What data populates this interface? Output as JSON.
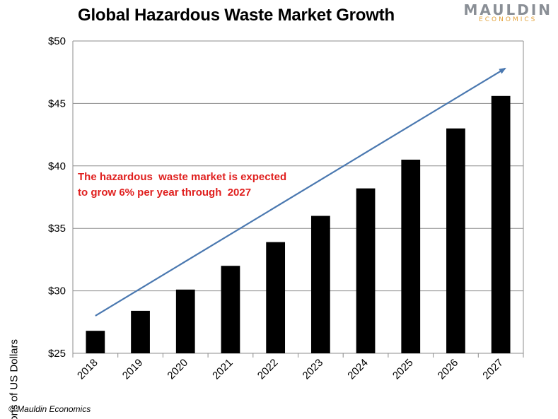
{
  "chart_data": {
    "type": "bar",
    "title": "Global Hazardous Waste Market Growth",
    "xlabel": "",
    "ylabel": "Billions of US Dollars",
    "categories": [
      "2018",
      "2019",
      "2020",
      "2021",
      "2022",
      "2023",
      "2024",
      "2025",
      "2026",
      "2027"
    ],
    "values": [
      26.8,
      28.4,
      30.1,
      32.0,
      33.9,
      36.0,
      38.2,
      40.5,
      43.0,
      45.6
    ],
    "ylim": [
      25,
      50
    ],
    "yticks": [
      25,
      30,
      35,
      40,
      45,
      50
    ],
    "ytick_labels": [
      "$25",
      "$30",
      "$35",
      "$40",
      "$45",
      "$50"
    ],
    "grid": true,
    "bar_color": "#000000",
    "annotation": {
      "lines": [
        "The hazardous  waste market is expected",
        "to grow 6% per year through  2027"
      ],
      "color": "#e0201f"
    },
    "trend_arrow": {
      "from": [
        "2018",
        28.0
      ],
      "to": [
        "2027",
        47.8
      ],
      "color": "#4a78b0"
    }
  },
  "logo": {
    "main": "MAULDIN",
    "sub": "ECONOMICS"
  },
  "footer": {
    "copyright": "© Mauldin Economics"
  }
}
